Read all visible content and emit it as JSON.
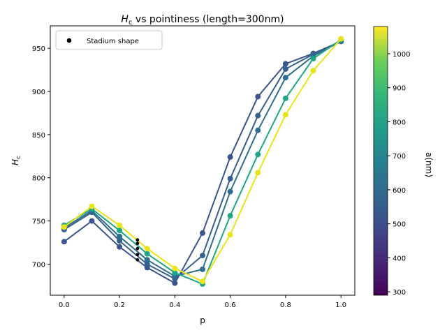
{
  "chart_data": {
    "type": "line",
    "title": "H_c vs pointiness (length=300nm)",
    "title_parts": {
      "symbol": "H",
      "subscript": "c",
      "rest": " vs pointiness (length=300nm)"
    },
    "xlabel": "p",
    "ylabel_parts": {
      "symbol": "H",
      "subscript": "c"
    },
    "xlim": [
      -0.05,
      1.05
    ],
    "ylim": [
      664,
      976
    ],
    "x_ticks": [
      "0.0",
      "0.2",
      "0.4",
      "0.6",
      "0.8",
      "1.0"
    ],
    "y_ticks": [
      "700",
      "750",
      "800",
      "850",
      "900",
      "950"
    ],
    "grid": false,
    "colorbar": {
      "label": "a(nm)",
      "range": [
        290,
        1080
      ],
      "colormap": "viridis",
      "ticks": [
        "300",
        "400",
        "500",
        "600",
        "700",
        "800",
        "900",
        "1000"
      ]
    },
    "legend": {
      "placement": "top-left",
      "entries": [
        {
          "label": "Stadium shape",
          "marker": "black-dot"
        }
      ]
    },
    "x": [
      0.0,
      0.1,
      0.2,
      0.3,
      0.4,
      0.5,
      0.6,
      0.7,
      0.8,
      0.9,
      1.0
    ],
    "series": [
      {
        "a": 500,
        "color": "#3a548c",
        "values": [
          726,
          750,
          720,
          696,
          678,
          736,
          824,
          894,
          932,
          944,
          958
        ]
      },
      {
        "a": 550,
        "color": "#355f8d",
        "values": [
          740,
          760,
          727,
          700,
          683,
          710,
          799,
          872,
          926,
          943,
          958
        ]
      },
      {
        "a": 620,
        "color": "#2e6d8e",
        "values": [
          742,
          762,
          732,
          705,
          686,
          694,
          784,
          855,
          916,
          941,
          958
        ]
      },
      {
        "a": 780,
        "color": "#21a685",
        "values": [
          745,
          764,
          739,
          712,
          690,
          677,
          756,
          827,
          892,
          938,
          960
        ]
      },
      {
        "a": 1080,
        "color": "#e7e419",
        "values": [
          743,
          767,
          745,
          718,
          695,
          680,
          734,
          806,
          873,
          924,
          961
        ]
      }
    ],
    "stadium_points": {
      "x": 0.265,
      "values": [
        705,
        711,
        718,
        724,
        728
      ]
    }
  }
}
